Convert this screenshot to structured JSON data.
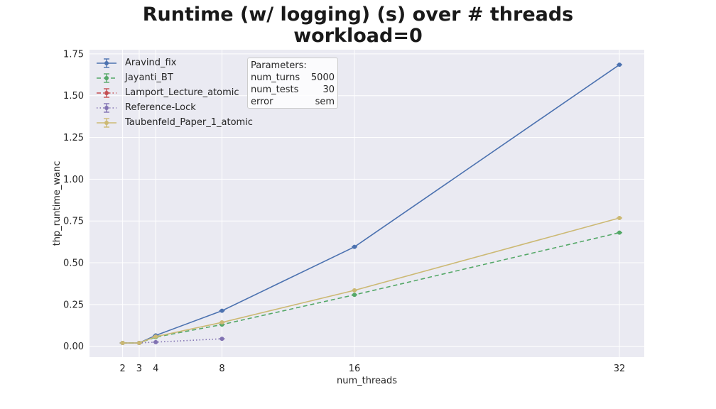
{
  "chart_data": {
    "type": "line",
    "title": "Runtime (w/ logging) (s) over # threads",
    "subtitle": "workload=0",
    "xlabel": "num_threads",
    "ylabel": "thp_runtime_wanc",
    "x": [
      2,
      3,
      4,
      8,
      16,
      32
    ],
    "xticks": [
      2,
      3,
      4,
      8,
      16,
      32
    ],
    "yticks": [
      "0.00",
      "0.25",
      "0.50",
      "0.75",
      "1.00",
      "1.25",
      "1.50",
      "1.75"
    ],
    "xlim": [
      0,
      33.5
    ],
    "ylim": [
      -0.065,
      1.775
    ],
    "grid": true,
    "legend_placement": "top-left",
    "series": [
      {
        "name": "Aravind_fix",
        "color": "#4c72b0",
        "dash": "",
        "x": [
          2,
          3,
          4,
          8,
          16,
          32
        ],
        "values": [
          0.02,
          0.02,
          0.065,
          0.213,
          0.595,
          1.685
        ]
      },
      {
        "name": "Jayanti_BT",
        "color": "#55a868",
        "dash": "6,4",
        "x": [
          2,
          3,
          4,
          8,
          16,
          32
        ],
        "values": [
          0.02,
          0.02,
          0.055,
          0.13,
          0.308,
          0.68
        ]
      },
      {
        "name": "Lamport_Lecture_atomic",
        "color": "#c44e52",
        "dash": "6,3,1.5,3",
        "x": [],
        "values": []
      },
      {
        "name": "Reference-Lock",
        "color": "#8172b2",
        "dash": "1.5,3",
        "x": [
          2,
          3,
          4,
          8
        ],
        "values": [
          0.02,
          0.02,
          0.025,
          0.045
        ]
      },
      {
        "name": "Taubenfeld_Paper_1_atomic",
        "color": "#ccb974",
        "dash": "",
        "x": [
          2,
          3,
          4,
          8,
          16,
          32
        ],
        "values": [
          0.02,
          0.02,
          0.058,
          0.143,
          0.335,
          0.768
        ]
      }
    ]
  },
  "params": {
    "heading": "Parameters:",
    "rows": [
      {
        "key": "num_turns",
        "value": "5000"
      },
      {
        "key": "num_tests",
        "value": "30"
      },
      {
        "key": "error",
        "value": "sem"
      }
    ]
  }
}
